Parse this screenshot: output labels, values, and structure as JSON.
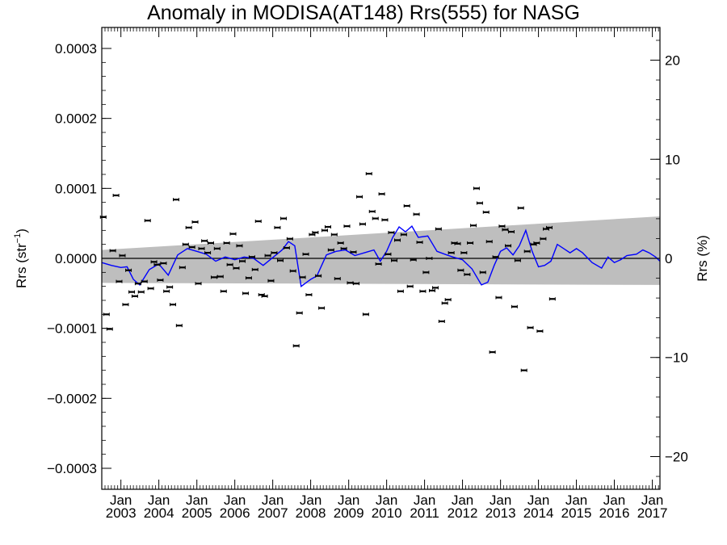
{
  "chart_data": {
    "type": "scatter",
    "title": "Anomaly in MODISA(AT148) Rrs(555) for NASG",
    "ylabel_left": "Rrs (str",
    "ylabel_left_exp": "−1",
    "ylabel_left_close": ")",
    "ylabel_right": "Rrs (%)",
    "x_range": [
      "2002-07-01",
      "2017-03-15"
    ],
    "ylim_left": [
      -0.00033,
      0.00033
    ],
    "ylim_right": [
      -23.3,
      23.3
    ],
    "y_ticks_left": [
      {
        "value": 0.0003,
        "label": "0.0003"
      },
      {
        "value": 0.0002,
        "label": "0.0002"
      },
      {
        "value": 0.0001,
        "label": "0.0001"
      },
      {
        "value": 0.0,
        "label": "0.0000"
      },
      {
        "value": -0.0001,
        "label": "−0.0001"
      },
      {
        "value": -0.0002,
        "label": "−0.0002"
      },
      {
        "value": -0.0003,
        "label": "−0.0003"
      }
    ],
    "y_ticks_right": [
      {
        "value": 20,
        "label": "20"
      },
      {
        "value": 10,
        "label": "10"
      },
      {
        "value": 0,
        "label": "0"
      },
      {
        "value": -10,
        "label": "−10"
      },
      {
        "value": -20,
        "label": "−20"
      }
    ],
    "x_ticks": [
      {
        "date": "2003-01-01",
        "month": "Jan",
        "year": "2003"
      },
      {
        "date": "2004-01-01",
        "month": "Jan",
        "year": "2004"
      },
      {
        "date": "2005-01-01",
        "month": "Jan",
        "year": "2005"
      },
      {
        "date": "2006-01-01",
        "month": "Jan",
        "year": "2006"
      },
      {
        "date": "2007-01-01",
        "month": "Jan",
        "year": "2007"
      },
      {
        "date": "2008-01-01",
        "month": "Jan",
        "year": "2008"
      },
      {
        "date": "2009-01-01",
        "month": "Jan",
        "year": "2009"
      },
      {
        "date": "2010-01-01",
        "month": "Jan",
        "year": "2010"
      },
      {
        "date": "2011-01-01",
        "month": "Jan",
        "year": "2011"
      },
      {
        "date": "2012-01-01",
        "month": "Jan",
        "year": "2012"
      },
      {
        "date": "2013-01-01",
        "month": "Jan",
        "year": "2013"
      },
      {
        "date": "2014-01-01",
        "month": "Jan",
        "year": "2014"
      },
      {
        "date": "2015-01-01",
        "month": "Jan",
        "year": "2015"
      },
      {
        "date": "2016-01-01",
        "month": "Jan",
        "year": "2016"
      },
      {
        "date": "2017-01-01",
        "month": "Jan",
        "year": "2017"
      }
    ],
    "zero_line": 0.0,
    "band": {
      "color": "#bebebe",
      "start": {
        "date": "2002-07-01",
        "upper": 1.2e-05,
        "lower": -3.5e-05
      },
      "end": {
        "date": "2017-03-15",
        "upper": 6e-05,
        "lower": -3.8e-05
      }
    },
    "points": [
      {
        "x": "2002-07-15",
        "y": 5.9e-05
      },
      {
        "x": "2002-08-15",
        "y": -8e-05
      },
      {
        "x": "2002-09-15",
        "y": -0.000101
      },
      {
        "x": "2002-10-15",
        "y": 1.1e-05
      },
      {
        "x": "2002-11-15",
        "y": 9e-05
      },
      {
        "x": "2002-12-15",
        "y": -3.3e-05
      },
      {
        "x": "2003-01-15",
        "y": 4e-06
      },
      {
        "x": "2003-02-15",
        "y": -6.6e-05
      },
      {
        "x": "2003-03-15",
        "y": -1.7e-05
      },
      {
        "x": "2003-04-15",
        "y": -4.8e-05
      },
      {
        "x": "2003-05-15",
        "y": -5.4e-05
      },
      {
        "x": "2003-06-15",
        "y": -3.6e-05
      },
      {
        "x": "2003-07-15",
        "y": -4.8e-05
      },
      {
        "x": "2003-08-15",
        "y": -3.3e-05
      },
      {
        "x": "2003-09-15",
        "y": 5.4e-05
      },
      {
        "x": "2003-10-15",
        "y": -4.3e-05
      },
      {
        "x": "2003-11-15",
        "y": -5e-06
      },
      {
        "x": "2003-12-15",
        "y": -9e-06
      },
      {
        "x": "2004-01-15",
        "y": -3.1e-05
      },
      {
        "x": "2004-02-15",
        "y": -7e-06
      },
      {
        "x": "2004-03-15",
        "y": -4.7e-05
      },
      {
        "x": "2004-04-15",
        "y": -4.1e-05
      },
      {
        "x": "2004-05-15",
        "y": -6.6e-05
      },
      {
        "x": "2004-06-15",
        "y": 8.4e-05
      },
      {
        "x": "2004-07-15",
        "y": -9.6e-05
      },
      {
        "x": "2004-08-15",
        "y": -1.3e-05
      },
      {
        "x": "2004-09-15",
        "y": 2e-05
      },
      {
        "x": "2004-10-15",
        "y": 4.4e-05
      },
      {
        "x": "2004-11-15",
        "y": 1.6e-05
      },
      {
        "x": "2004-12-15",
        "y": 5.2e-05
      },
      {
        "x": "2005-01-15",
        "y": -3.6e-05
      },
      {
        "x": "2005-02-15",
        "y": 1.4e-05
      },
      {
        "x": "2005-03-15",
        "y": 2.5e-05
      },
      {
        "x": "2005-04-15",
        "y": 8e-06
      },
      {
        "x": "2005-05-15",
        "y": 2.2e-05
      },
      {
        "x": "2005-06-15",
        "y": -2.7e-05
      },
      {
        "x": "2005-07-15",
        "y": 1.4e-05
      },
      {
        "x": "2005-08-15",
        "y": -2.6e-05
      },
      {
        "x": "2005-09-15",
        "y": -4.7e-05
      },
      {
        "x": "2005-10-15",
        "y": 2.2e-05
      },
      {
        "x": "2005-11-15",
        "y": -9e-06
      },
      {
        "x": "2005-12-15",
        "y": 3.5e-05
      },
      {
        "x": "2006-01-15",
        "y": -1.4e-05
      },
      {
        "x": "2006-02-15",
        "y": 1.8e-05
      },
      {
        "x": "2006-03-15",
        "y": -4e-06
      },
      {
        "x": "2006-04-15",
        "y": -5e-05
      },
      {
        "x": "2006-05-15",
        "y": -2.8e-05
      },
      {
        "x": "2006-06-15",
        "y": 2e-06
      },
      {
        "x": "2006-07-15",
        "y": -1.6e-05
      },
      {
        "x": "2006-08-15",
        "y": 5.3e-05
      },
      {
        "x": "2006-09-15",
        "y": -5.2e-05
      },
      {
        "x": "2006-10-15",
        "y": -5.4e-05
      },
      {
        "x": "2006-11-15",
        "y": 4e-06
      },
      {
        "x": "2006-12-15",
        "y": -3.2e-05
      },
      {
        "x": "2007-01-15",
        "y": 8e-06
      },
      {
        "x": "2007-02-15",
        "y": 4.4e-05
      },
      {
        "x": "2007-03-15",
        "y": -3e-06
      },
      {
        "x": "2007-04-15",
        "y": 5.7e-05
      },
      {
        "x": "2007-05-15",
        "y": 1.5e-05
      },
      {
        "x": "2007-06-15",
        "y": 2.8e-05
      },
      {
        "x": "2007-07-15",
        "y": -1.8e-05
      },
      {
        "x": "2007-08-15",
        "y": -0.000125
      },
      {
        "x": "2007-09-15",
        "y": -7.8e-05
      },
      {
        "x": "2007-10-15",
        "y": -2.7e-05
      },
      {
        "x": "2007-11-15",
        "y": 6e-06
      },
      {
        "x": "2007-12-15",
        "y": -5.2e-05
      },
      {
        "x": "2008-01-15",
        "y": 3.4e-05
      },
      {
        "x": "2008-02-15",
        "y": 3.7e-05
      },
      {
        "x": "2008-03-15",
        "y": -2.5e-05
      },
      {
        "x": "2008-04-15",
        "y": -7.1e-05
      },
      {
        "x": "2008-05-15",
        "y": 4e-05
      },
      {
        "x": "2008-06-15",
        "y": 4.5e-05
      },
      {
        "x": "2008-07-15",
        "y": 1.2e-05
      },
      {
        "x": "2008-08-15",
        "y": 3.4e-05
      },
      {
        "x": "2008-09-15",
        "y": -2.9e-05
      },
      {
        "x": "2008-10-15",
        "y": 2.2e-05
      },
      {
        "x": "2008-11-15",
        "y": 1.4e-05
      },
      {
        "x": "2008-12-15",
        "y": 4.6e-05
      },
      {
        "x": "2009-01-15",
        "y": -3.5e-05
      },
      {
        "x": "2009-02-15",
        "y": 9e-06
      },
      {
        "x": "2009-03-15",
        "y": -3.6e-05
      },
      {
        "x": "2009-04-15",
        "y": 8.8e-05
      },
      {
        "x": "2009-05-15",
        "y": 4.9e-05
      },
      {
        "x": "2009-06-15",
        "y": -8e-05
      },
      {
        "x": "2009-07-15",
        "y": 0.000121
      },
      {
        "x": "2009-08-15",
        "y": 6.7e-05
      },
      {
        "x": "2009-09-15",
        "y": 5.7e-05
      },
      {
        "x": "2009-10-15",
        "y": -8e-06
      },
      {
        "x": "2009-11-15",
        "y": 9.2e-05
      },
      {
        "x": "2009-12-15",
        "y": 5.5e-05
      },
      {
        "x": "2010-01-15",
        "y": 6e-06
      },
      {
        "x": "2010-02-15",
        "y": 3.7e-05
      },
      {
        "x": "2010-03-15",
        "y": -3e-06
      },
      {
        "x": "2010-04-15",
        "y": 2.6e-05
      },
      {
        "x": "2010-05-15",
        "y": -4.7e-05
      },
      {
        "x": "2010-06-15",
        "y": 3.4e-05
      },
      {
        "x": "2010-07-15",
        "y": 7.5e-05
      },
      {
        "x": "2010-08-15",
        "y": -4e-05
      },
      {
        "x": "2010-09-15",
        "y": -2e-06
      },
      {
        "x": "2010-10-15",
        "y": 6.3e-05
      },
      {
        "x": "2010-11-15",
        "y": 2.3e-05
      },
      {
        "x": "2010-12-15",
        "y": -4.7e-05
      },
      {
        "x": "2011-01-15",
        "y": -2e-05
      },
      {
        "x": "2011-02-15",
        "y": 0.0
      },
      {
        "x": "2011-03-15",
        "y": -4.6e-05
      },
      {
        "x": "2011-04-15",
        "y": -4.2e-05
      },
      {
        "x": "2011-05-15",
        "y": 4.2e-05
      },
      {
        "x": "2011-06-15",
        "y": -9e-05
      },
      {
        "x": "2011-07-15",
        "y": -6.4e-05
      },
      {
        "x": "2011-08-15",
        "y": -5.9e-05
      },
      {
        "x": "2011-09-15",
        "y": 8e-06
      },
      {
        "x": "2011-10-15",
        "y": 2.2e-05
      },
      {
        "x": "2011-11-15",
        "y": 2.1e-05
      },
      {
        "x": "2011-12-15",
        "y": -1.7e-05
      },
      {
        "x": "2012-01-15",
        "y": 8e-06
      },
      {
        "x": "2012-02-15",
        "y": -2.3e-05
      },
      {
        "x": "2012-03-15",
        "y": 2.2e-05
      },
      {
        "x": "2012-04-15",
        "y": 4.7e-05
      },
      {
        "x": "2012-05-15",
        "y": 0.0001
      },
      {
        "x": "2012-06-15",
        "y": 7.9e-05
      },
      {
        "x": "2012-07-15",
        "y": -2e-05
      },
      {
        "x": "2012-08-15",
        "y": 6.6e-05
      },
      {
        "x": "2012-09-15",
        "y": 2.4e-05
      },
      {
        "x": "2012-10-15",
        "y": -0.000134
      },
      {
        "x": "2012-11-15",
        "y": 2e-06
      },
      {
        "x": "2012-12-15",
        "y": -5.6e-05
      },
      {
        "x": "2013-01-15",
        "y": 4.6e-05
      },
      {
        "x": "2013-02-15",
        "y": 4.1e-05
      },
      {
        "x": "2013-03-15",
        "y": 1.8e-05
      },
      {
        "x": "2013-04-15",
        "y": 3.8e-05
      },
      {
        "x": "2013-05-15",
        "y": -6.9e-05
      },
      {
        "x": "2013-06-15",
        "y": -3e-06
      },
      {
        "x": "2013-07-15",
        "y": 7.2e-05
      },
      {
        "x": "2013-08-15",
        "y": -0.00016
      },
      {
        "x": "2013-09-15",
        "y": 1e-05
      },
      {
        "x": "2013-10-15",
        "y": -9.9e-05
      },
      {
        "x": "2013-11-15",
        "y": 2e-05
      },
      {
        "x": "2013-12-15",
        "y": 2.2e-05
      },
      {
        "x": "2014-01-15",
        "y": -0.000104
      },
      {
        "x": "2014-02-15",
        "y": 2.8e-05
      },
      {
        "x": "2014-03-15",
        "y": 4.2e-05
      },
      {
        "x": "2014-04-15",
        "y": 4.4e-05
      },
      {
        "x": "2014-05-15",
        "y": -5.8e-05
      }
    ],
    "smooth_line": {
      "color": "#0000ff",
      "points": [
        {
          "x": "2002-07-01",
          "y": -6e-06
        },
        {
          "x": "2002-10-01",
          "y": -1e-05
        },
        {
          "x": "2003-01-01",
          "y": -1.3e-05
        },
        {
          "x": "2003-03-01",
          "y": -1.2e-05
        },
        {
          "x": "2003-05-01",
          "y": -3e-05
        },
        {
          "x": "2003-07-01",
          "y": -3.8e-05
        },
        {
          "x": "2003-10-01",
          "y": -1.6e-05
        },
        {
          "x": "2004-01-01",
          "y": -8e-06
        },
        {
          "x": "2004-04-01",
          "y": -2.4e-05
        },
        {
          "x": "2004-07-01",
          "y": 5e-06
        },
        {
          "x": "2004-10-01",
          "y": 1.4e-05
        },
        {
          "x": "2005-01-01",
          "y": 1e-05
        },
        {
          "x": "2005-04-01",
          "y": 6e-06
        },
        {
          "x": "2005-07-01",
          "y": -4e-06
        },
        {
          "x": "2005-10-01",
          "y": 2e-06
        },
        {
          "x": "2006-01-01",
          "y": -2e-06
        },
        {
          "x": "2006-04-01",
          "y": 2e-06
        },
        {
          "x": "2006-07-01",
          "y": 0.0
        },
        {
          "x": "2006-10-01",
          "y": -1e-05
        },
        {
          "x": "2007-01-01",
          "y": 1e-06
        },
        {
          "x": "2007-04-01",
          "y": 1.2e-05
        },
        {
          "x": "2007-06-01",
          "y": 2.4e-05
        },
        {
          "x": "2007-08-01",
          "y": 1.8e-05
        },
        {
          "x": "2007-10-01",
          "y": -4e-05
        },
        {
          "x": "2008-01-01",
          "y": -3e-05
        },
        {
          "x": "2008-03-01",
          "y": -2.5e-05
        },
        {
          "x": "2008-06-01",
          "y": 5e-06
        },
        {
          "x": "2008-09-01",
          "y": 1e-05
        },
        {
          "x": "2008-12-01",
          "y": 1.2e-05
        },
        {
          "x": "2009-03-01",
          "y": 4e-06
        },
        {
          "x": "2009-06-01",
          "y": 8e-06
        },
        {
          "x": "2009-09-01",
          "y": 1.2e-05
        },
        {
          "x": "2009-11-01",
          "y": -4e-06
        },
        {
          "x": "2010-01-01",
          "y": 1e-05
        },
        {
          "x": "2010-03-01",
          "y": 3e-05
        },
        {
          "x": "2010-05-01",
          "y": 4.5e-05
        },
        {
          "x": "2010-07-01",
          "y": 3.8e-05
        },
        {
          "x": "2010-09-01",
          "y": 4.6e-05
        },
        {
          "x": "2010-11-01",
          "y": 3e-05
        },
        {
          "x": "2011-02-01",
          "y": 3.2e-05
        },
        {
          "x": "2011-05-01",
          "y": 1e-05
        },
        {
          "x": "2011-08-01",
          "y": 5e-06
        },
        {
          "x": "2011-10-01",
          "y": 2e-06
        },
        {
          "x": "2012-01-01",
          "y": -2e-06
        },
        {
          "x": "2012-04-01",
          "y": -1.5e-05
        },
        {
          "x": "2012-07-01",
          "y": -3.8e-05
        },
        {
          "x": "2012-09-01",
          "y": -3.4e-05
        },
        {
          "x": "2012-11-01",
          "y": -1e-05
        },
        {
          "x": "2013-01-01",
          "y": 1e-05
        },
        {
          "x": "2013-03-01",
          "y": 1.5e-05
        },
        {
          "x": "2013-05-01",
          "y": 5e-06
        },
        {
          "x": "2013-07-01",
          "y": 1.8e-05
        },
        {
          "x": "2013-09-01",
          "y": 4e-05
        },
        {
          "x": "2013-11-01",
          "y": 1e-05
        },
        {
          "x": "2014-01-01",
          "y": -1.2e-05
        },
        {
          "x": "2014-03-01",
          "y": -1e-05
        },
        {
          "x": "2014-05-01",
          "y": -4e-06
        },
        {
          "x": "2014-07-01",
          "y": 2e-05
        },
        {
          "x": "2014-09-01",
          "y": 1.4e-05
        },
        {
          "x": "2014-11-01",
          "y": 8e-06
        },
        {
          "x": "2015-01-01",
          "y": 1.4e-05
        },
        {
          "x": "2015-03-01",
          "y": 8e-06
        },
        {
          "x": "2015-06-01",
          "y": -6e-06
        },
        {
          "x": "2015-09-01",
          "y": -1.4e-05
        },
        {
          "x": "2015-11-01",
          "y": 2e-06
        },
        {
          "x": "2016-01-01",
          "y": -6e-06
        },
        {
          "x": "2016-03-01",
          "y": -2e-06
        },
        {
          "x": "2016-05-01",
          "y": 4e-06
        },
        {
          "x": "2016-08-01",
          "y": 6e-06
        },
        {
          "x": "2016-10-01",
          "y": 1.2e-05
        },
        {
          "x": "2016-12-01",
          "y": 8e-06
        },
        {
          "x": "2017-02-01",
          "y": 2e-06
        },
        {
          "x": "2017-03-15",
          "y": -4e-06
        }
      ]
    }
  }
}
